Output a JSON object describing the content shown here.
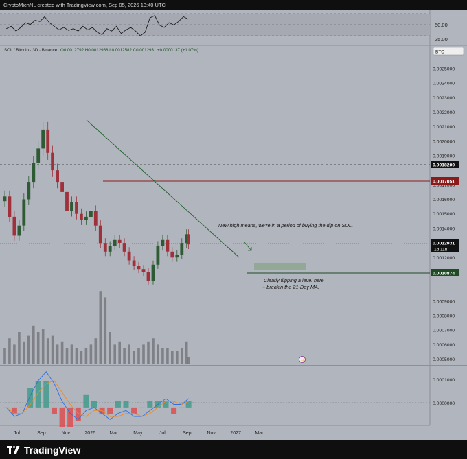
{
  "header": {
    "created_by": "CryptoMichNL created with TradingView.com, Sep 05, 2026 13:40 UTC"
  },
  "symbol_line": {
    "symbol": "SOL / Bitcoin · 3D · Binance",
    "ohlc": "O0.0012792 H0.0012968 L0.0012582 C0.0012931 +0.0000137 (+1.07%)"
  },
  "price_axis_badge": "BTC",
  "annotations": {
    "upper_note": "New high means, we're in a period of buying the dip on SOL.",
    "lower_note_line1": "Clearly flipping a level here",
    "lower_note_line2": "+ breakin the 21-Day MA."
  },
  "badges": {
    "level_dashed": "0.0018200",
    "level_red": "0.0017051",
    "current_price": "0.0012931",
    "countdown": "1d 11h",
    "level_green": "0.0010874"
  },
  "footer": {
    "brand": "TradingView"
  },
  "colors": {
    "pane_bg": "#b1b5bd",
    "bull": "#2e5a34",
    "bear": "#a0303a",
    "macd_line": "#2f6fe0",
    "signal_line": "#f08a24",
    "red_level": "#8b1a1a",
    "green_level": "#1f4a25",
    "volume_bar": "#6f7075"
  },
  "chart_data": [
    {
      "type": "line",
      "name": "RSI",
      "y_ticks": [
        "50.00",
        "25.00"
      ],
      "ylim": [
        20,
        80
      ],
      "grid": true,
      "x": [
        "2025-06-05",
        "2025-06-17",
        "2025-06-29",
        "2025-07-11",
        "2025-07-23",
        "2025-08-04",
        "2025-08-16",
        "2025-08-28",
        "2025-09-09",
        "2025-09-21",
        "2025-10-03",
        "2025-10-15",
        "2025-10-27",
        "2025-11-08",
        "2025-11-20",
        "2025-12-02",
        "2025-12-14",
        "2025-12-26",
        "2026-01-07",
        "2026-01-19",
        "2026-01-31",
        "2026-02-12",
        "2026-02-24",
        "2026-03-08",
        "2026-03-20",
        "2026-04-01",
        "2026-04-13",
        "2026-04-25",
        "2026-05-07",
        "2026-05-19",
        "2026-05-31",
        "2026-06-12",
        "2026-06-24",
        "2026-07-06",
        "2026-07-18",
        "2026-07-30",
        "2026-08-11",
        "2026-08-23",
        "2026-09-04"
      ],
      "values": [
        48,
        52,
        44,
        50,
        58,
        55,
        62,
        60,
        68,
        58,
        52,
        46,
        50,
        45,
        48,
        44,
        52,
        46,
        50,
        42,
        38,
        48,
        44,
        52,
        40,
        46,
        50,
        44,
        36,
        42,
        66,
        70,
        54,
        50,
        58,
        54,
        60,
        68,
        64
      ]
    },
    {
      "type": "candlestick",
      "name": "SOL / Bitcoin",
      "x_ticks": [
        "Jul",
        "Sep",
        "Nov",
        "2026",
        "Mar",
        "May",
        "Jul",
        "Sep",
        "Nov",
        "2027",
        "Mar"
      ],
      "y_ticks": [
        "0.0025000",
        "0.0024000",
        "0.0023000",
        "0.0022000",
        "0.0021000",
        "0.0020000",
        "0.0019000",
        "0.0017000",
        "0.0016000",
        "0.0015000",
        "0.0014000",
        "0.0012000",
        "0.0011000",
        "0.0009000",
        "0.0008000",
        "0.0007000",
        "0.0006000",
        "0.0005000"
      ],
      "ylim": [
        0.00046,
        0.00266
      ],
      "x": [
        "2025-06-01",
        "2025-06-13",
        "2025-06-25",
        "2025-07-07",
        "2025-07-19",
        "2025-07-31",
        "2025-08-12",
        "2025-08-24",
        "2025-09-05",
        "2025-09-17",
        "2025-09-29",
        "2025-10-11",
        "2025-10-23",
        "2025-11-04",
        "2025-11-16",
        "2025-11-28",
        "2025-12-10",
        "2025-12-22",
        "2026-01-03",
        "2026-01-15",
        "2026-01-27",
        "2026-02-08",
        "2026-02-20",
        "2026-03-04",
        "2026-03-16",
        "2026-03-28",
        "2026-04-09",
        "2026-04-21",
        "2026-05-03",
        "2026-05-15",
        "2026-05-27",
        "2026-06-08",
        "2026-06-20",
        "2026-07-02",
        "2026-07-14",
        "2026-07-26",
        "2026-08-07",
        "2026-08-19",
        "2026-08-31",
        "2026-09-05"
      ],
      "close": [
        0.00162,
        0.00148,
        0.00135,
        0.00142,
        0.0016,
        0.00172,
        0.00185,
        0.00195,
        0.00208,
        0.00192,
        0.0018,
        0.00172,
        0.00165,
        0.00152,
        0.00158,
        0.0015,
        0.00146,
        0.00148,
        0.00152,
        0.00142,
        0.0013,
        0.00124,
        0.00128,
        0.00132,
        0.0013,
        0.00124,
        0.00118,
        0.00114,
        0.00112,
        0.0011,
        0.00104,
        0.00115,
        0.00128,
        0.00132,
        0.00124,
        0.0012,
        0.00122,
        0.0013,
        0.00136,
        0.00129
      ],
      "volume_ylim": [
        0,
        2.5
      ],
      "volume": [
        0.5,
        0.8,
        0.6,
        1.0,
        0.7,
        0.9,
        1.2,
        1.0,
        1.1,
        0.8,
        0.9,
        0.6,
        0.7,
        0.5,
        0.6,
        0.5,
        0.4,
        0.5,
        0.6,
        0.8,
        2.3,
        2.1,
        1.0,
        0.6,
        0.7,
        0.5,
        0.6,
        0.4,
        0.5,
        0.6,
        0.7,
        0.8,
        0.6,
        0.5,
        0.5,
        0.4,
        0.4,
        0.5,
        0.7,
        0.2
      ],
      "levels": [
        0.00182,
        0.0017051,
        0.0010874
      ],
      "highlight_zone": [
        0.00115,
        0.00122
      ]
    },
    {
      "type": "line",
      "name": "MACD",
      "y_ticks": [
        "0.0001000",
        "0.0000000"
      ],
      "ylim": [
        -6e-05,
        0.00014
      ],
      "x": [
        "2025-06-05",
        "2025-06-25",
        "2025-07-15",
        "2025-08-04",
        "2025-08-24",
        "2025-09-13",
        "2025-10-03",
        "2025-10-23",
        "2025-11-12",
        "2025-12-02",
        "2025-12-22",
        "2026-01-11",
        "2026-01-31",
        "2026-02-20",
        "2026-03-12",
        "2026-04-01",
        "2026-04-21",
        "2026-05-11",
        "2026-05-31",
        "2026-06-20",
        "2026-07-10",
        "2026-07-30",
        "2026-08-19",
        "2026-09-05"
      ],
      "series": [
        {
          "values": [
            0,
            -3e-05,
            -2e-05,
            4e-05,
            9e-05,
            0.00012,
            8e-05,
            2e-05,
            -2e-05,
            -4e-05,
            -1e-05,
            0,
            -2e-05,
            -4e-05,
            -2e-05,
            -1e-05,
            -3e-05,
            -3e-05,
            -1e-05,
            1e-05,
            3e-05,
            1e-05,
            1e-05,
            3e-05
          ]
        },
        {
          "values": [
            0,
            -2e-05,
            -2e-05,
            1e-05,
            5e-05,
            8e-05,
            9e-05,
            5e-05,
            1e-05,
            -2e-05,
            -3e-05,
            -1e-05,
            -1e-05,
            -3e-05,
            -3e-05,
            -2e-05,
            -2e-05,
            -3e-05,
            -2e-05,
            0,
            2e-05,
            2e-05,
            1e-05,
            2e-05
          ]
        }
      ]
    }
  ]
}
